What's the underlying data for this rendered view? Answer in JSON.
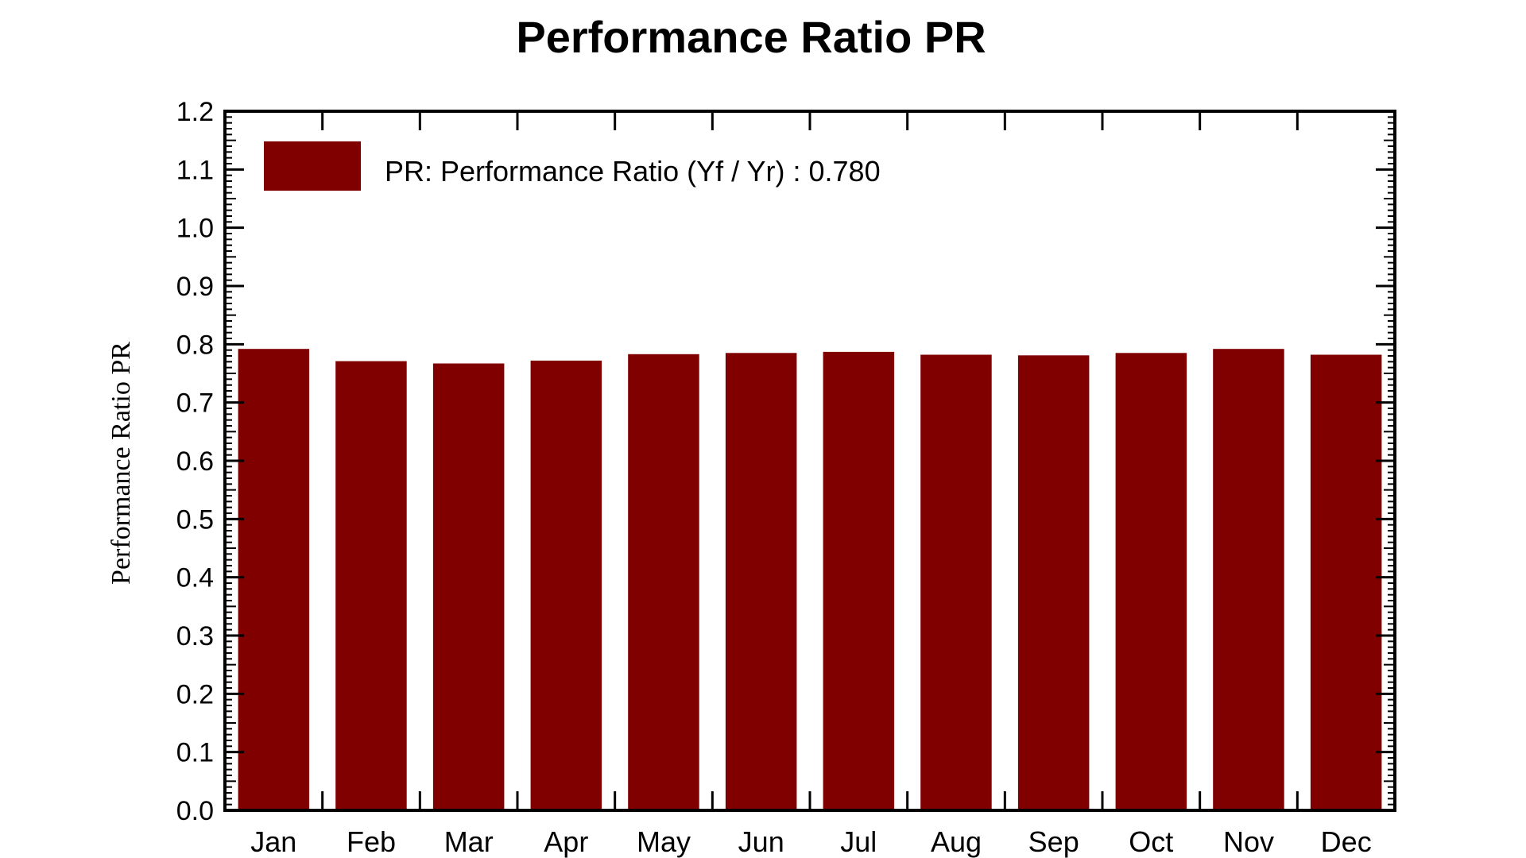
{
  "chart_data": {
    "type": "bar",
    "title": "Performance Ratio PR",
    "xlabel": "",
    "ylabel": "Performance Ratio PR",
    "ylim": [
      0,
      1.2
    ],
    "yticks": [
      "0.0",
      "0.1",
      "0.2",
      "0.3",
      "0.4",
      "0.5",
      "0.6",
      "0.7",
      "0.8",
      "0.9",
      "1.0",
      "1.1",
      "1.2"
    ],
    "categories": [
      "Jan",
      "Feb",
      "Mar",
      "Apr",
      "May",
      "Jun",
      "Jul",
      "Aug",
      "Sep",
      "Oct",
      "Nov",
      "Dec"
    ],
    "series": [
      {
        "name": "PR: Performance Ratio (Yf / Yr) :  0.780",
        "color": "#800000",
        "values": [
          0.792,
          0.771,
          0.767,
          0.772,
          0.783,
          0.785,
          0.787,
          0.782,
          0.781,
          0.785,
          0.792,
          0.782
        ]
      }
    ],
    "legend_position": "top-left",
    "grid": false
  }
}
